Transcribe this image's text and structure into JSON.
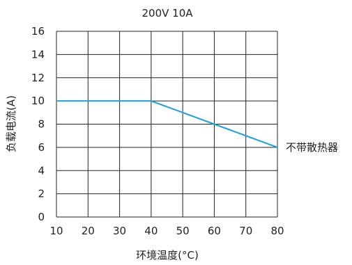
{
  "chart_data": {
    "type": "line",
    "title": "200V 10A",
    "xlabel": "环境温度(°C)",
    "ylabel": "负载电流(A)",
    "xlim": [
      10,
      80
    ],
    "ylim": [
      0,
      16
    ],
    "x_ticks": [
      10,
      20,
      30,
      40,
      50,
      60,
      70,
      80
    ],
    "y_ticks": [
      0,
      2,
      4,
      6,
      8,
      10,
      12,
      14,
      16
    ],
    "grid": true,
    "series": [
      {
        "name": "不带散热器",
        "color": "#1ba1e2",
        "points": [
          [
            10,
            10
          ],
          [
            40,
            10
          ],
          [
            60,
            8
          ],
          [
            80,
            6
          ]
        ]
      }
    ]
  }
}
